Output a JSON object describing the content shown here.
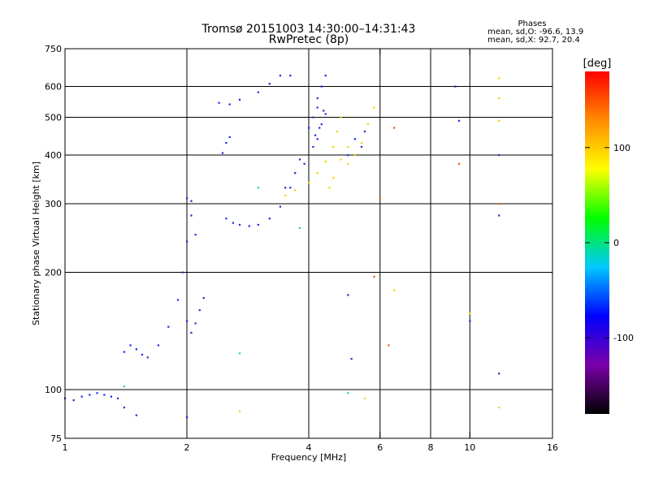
{
  "chart_data": {
    "type": "scatter",
    "title": "Tromsø 20151003 14:30:00–14:31:43",
    "subtitle": "RwPretec (8p)",
    "xlabel": "Frequency [MHz]",
    "ylabel": "Stationary phase Virtual Height [km]",
    "x_scale": "log",
    "y_scale": "log",
    "xlim": [
      1,
      16
    ],
    "ylim": [
      75,
      750
    ],
    "x_ticks": [
      1,
      2,
      4,
      6,
      8,
      10,
      16
    ],
    "x_tick_labels": [
      "1",
      "2",
      "4",
      "6",
      "8",
      "10",
      "16"
    ],
    "y_ticks": [
      75,
      100,
      200,
      300,
      400,
      500,
      600,
      750
    ],
    "y_tick_labels": [
      "75",
      "100",
      "200",
      "300",
      "400",
      "500",
      "600",
      "750"
    ],
    "grid": true,
    "grid_x": [
      2,
      4,
      6,
      8,
      10
    ],
    "grid_y": [
      100,
      200,
      300,
      400,
      500,
      600
    ],
    "stats": {
      "heading": "Phases",
      "line1": "mean, sd,O: -96.6, 13.9",
      "line2": "mean, sd,X: 92.7, 20.4"
    },
    "colorbar": {
      "label": "[deg]",
      "range": [
        -180,
        180
      ],
      "ticks": [
        100,
        0,
        -100
      ],
      "tick_labels": [
        "100",
        "0",
        "-100"
      ],
      "stops": [
        "#000000",
        "#7a00a8",
        "#0000ff",
        "#00c8ff",
        "#00ff00",
        "#ffff00",
        "#ff8c00",
        "#ff0000"
      ]
    },
    "colors": {
      "o_mode": "#1a2be0",
      "x_mode": "#f5d000"
    },
    "series": [
      {
        "mode": "O",
        "phase": -96.6,
        "points": [
          [
            1.0,
            95
          ],
          [
            1.05,
            94
          ],
          [
            1.1,
            96
          ],
          [
            1.15,
            97
          ],
          [
            1.2,
            98
          ],
          [
            1.25,
            97
          ],
          [
            1.3,
            96
          ],
          [
            1.35,
            95
          ],
          [
            1.4,
            125
          ],
          [
            1.45,
            130
          ],
          [
            1.5,
            127
          ],
          [
            1.55,
            123
          ],
          [
            1.6,
            121
          ],
          [
            1.7,
            130
          ],
          [
            1.8,
            145
          ],
          [
            1.9,
            170
          ],
          [
            1.95,
            200
          ],
          [
            2.0,
            240
          ],
          [
            2.05,
            280
          ],
          [
            2.1,
            250
          ],
          [
            2.0,
            310
          ],
          [
            2.05,
            305
          ],
          [
            2.0,
            150
          ],
          [
            2.05,
            140
          ],
          [
            2.1,
            148
          ],
          [
            2.15,
            160
          ],
          [
            2.2,
            172
          ],
          [
            2.5,
            275
          ],
          [
            2.6,
            268
          ],
          [
            2.7,
            265
          ],
          [
            2.85,
            263
          ],
          [
            3.0,
            265
          ],
          [
            3.2,
            275
          ],
          [
            3.4,
            295
          ],
          [
            3.6,
            330
          ],
          [
            3.8,
            390
          ],
          [
            4.0,
            470
          ],
          [
            4.2,
            530
          ],
          [
            2.4,
            545
          ],
          [
            2.55,
            540
          ],
          [
            2.7,
            555
          ],
          [
            3.0,
            580
          ],
          [
            3.2,
            610
          ],
          [
            3.4,
            640
          ],
          [
            3.6,
            640
          ],
          [
            2.45,
            405
          ],
          [
            2.5,
            430
          ],
          [
            2.55,
            445
          ],
          [
            3.5,
            330
          ],
          [
            3.7,
            360
          ],
          [
            3.9,
            380
          ],
          [
            4.1,
            420
          ],
          [
            4.2,
            440
          ],
          [
            4.3,
            480
          ],
          [
            4.4,
            510
          ],
          [
            4.1,
            500
          ],
          [
            4.2,
            560
          ],
          [
            4.3,
            600
          ],
          [
            4.4,
            640
          ],
          [
            4.15,
            450
          ],
          [
            4.25,
            470
          ],
          [
            4.35,
            520
          ],
          [
            5.0,
            400
          ],
          [
            5.2,
            440
          ],
          [
            5.4,
            420
          ],
          [
            5.5,
            460
          ],
          [
            5.0,
            175
          ],
          [
            5.1,
            120
          ],
          [
            9.2,
            600
          ],
          [
            9.4,
            490
          ],
          [
            10.0,
            150
          ],
          [
            11.8,
            110
          ],
          [
            11.8,
            400
          ],
          [
            11.8,
            280
          ],
          [
            2.0,
            85
          ],
          [
            1.5,
            86
          ],
          [
            1.4,
            90
          ]
        ]
      },
      {
        "mode": "X",
        "phase": 92.7,
        "points": [
          [
            3.5,
            315
          ],
          [
            3.7,
            325
          ],
          [
            4.0,
            340
          ],
          [
            4.2,
            360
          ],
          [
            4.4,
            385
          ],
          [
            4.6,
            420
          ],
          [
            4.7,
            460
          ],
          [
            4.8,
            500
          ],
          [
            5.0,
            380
          ],
          [
            5.2,
            400
          ],
          [
            5.4,
            430
          ],
          [
            5.6,
            480
          ],
          [
            5.8,
            530
          ],
          [
            4.5,
            330
          ],
          [
            4.6,
            350
          ],
          [
            4.8,
            390
          ],
          [
            5.0,
            420
          ],
          [
            11.8,
            630
          ],
          [
            11.8,
            560
          ],
          [
            11.8,
            490
          ],
          [
            11.8,
            90
          ],
          [
            10.0,
            157
          ],
          [
            5.5,
            95
          ],
          [
            2.7,
            88
          ],
          [
            6.5,
            180
          ]
        ]
      },
      {
        "mode": "other",
        "phase": 150,
        "points": [
          [
            6.0,
            310
          ],
          [
            6.3,
            130
          ],
          [
            5.8,
            195
          ],
          [
            9.4,
            380
          ],
          [
            11.8,
            300
          ],
          [
            6.5,
            470
          ]
        ]
      },
      {
        "mode": "other",
        "phase": 0,
        "points": [
          [
            1.4,
            102
          ],
          [
            2.7,
            124
          ],
          [
            3.0,
            330
          ],
          [
            5.0,
            98
          ],
          [
            3.8,
            260
          ]
        ]
      }
    ]
  }
}
